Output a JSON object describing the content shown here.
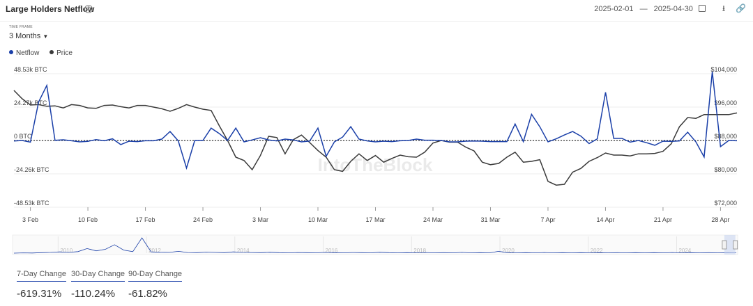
{
  "header": {
    "title": "Large Holders Netflow",
    "date_start": "2025-02-01",
    "date_sep": "—",
    "date_end": "2025-04-30"
  },
  "controls": {
    "timeframe_label": "TIME FRAME",
    "timeframe_value": "3 Months"
  },
  "icons": [
    "help-icon",
    "calendar-icon",
    "download-icon",
    "link-icon",
    "chevron-down-icon"
  ],
  "watermark": "IntoTheBlock",
  "colors": {
    "netflow": "#1a3fa8",
    "price": "#3a3a3a"
  },
  "chart_data": {
    "type": "line",
    "x": [
      "2025-02-01",
      "2025-02-02",
      "2025-02-03",
      "2025-02-04",
      "2025-02-05",
      "2025-02-06",
      "2025-02-07",
      "2025-02-08",
      "2025-02-09",
      "2025-02-10",
      "2025-02-11",
      "2025-02-12",
      "2025-02-13",
      "2025-02-14",
      "2025-02-15",
      "2025-02-16",
      "2025-02-17",
      "2025-02-18",
      "2025-02-19",
      "2025-02-20",
      "2025-02-21",
      "2025-02-22",
      "2025-02-23",
      "2025-02-24",
      "2025-02-25",
      "2025-02-26",
      "2025-02-27",
      "2025-02-28",
      "2025-03-01",
      "2025-03-02",
      "2025-03-03",
      "2025-03-04",
      "2025-03-05",
      "2025-03-06",
      "2025-03-07",
      "2025-03-08",
      "2025-03-09",
      "2025-03-10",
      "2025-03-11",
      "2025-03-12",
      "2025-03-13",
      "2025-03-14",
      "2025-03-15",
      "2025-03-16",
      "2025-03-17",
      "2025-03-18",
      "2025-03-19",
      "2025-03-20",
      "2025-03-21",
      "2025-03-22",
      "2025-03-23",
      "2025-03-24",
      "2025-03-25",
      "2025-03-26",
      "2025-03-27",
      "2025-03-28",
      "2025-03-29",
      "2025-03-30",
      "2025-03-31",
      "2025-04-01",
      "2025-04-02",
      "2025-04-03",
      "2025-04-04",
      "2025-04-05",
      "2025-04-06",
      "2025-04-07",
      "2025-04-08",
      "2025-04-09",
      "2025-04-10",
      "2025-04-11",
      "2025-04-12",
      "2025-04-13",
      "2025-04-14",
      "2025-04-15",
      "2025-04-16",
      "2025-04-17",
      "2025-04-18",
      "2025-04-19",
      "2025-04-20",
      "2025-04-21",
      "2025-04-22",
      "2025-04-23",
      "2025-04-24",
      "2025-04-25",
      "2025-04-26",
      "2025-04-27",
      "2025-04-28",
      "2025-04-29",
      "2025-04-30"
    ],
    "series": [
      {
        "name": "Netflow",
        "axis": "left",
        "color": "#1a3fa8",
        "values": [
          -400,
          0,
          -1200,
          28000,
          40000,
          100,
          500,
          -200,
          -1000,
          -600,
          600,
          -200,
          1200,
          -3000,
          -500,
          -800,
          -200,
          -200,
          1000,
          6500,
          -300,
          -20000,
          0,
          0,
          9000,
          5000,
          0,
          9000,
          -1000,
          400,
          2000,
          400,
          -300,
          1000,
          400,
          -1000,
          -400,
          9000,
          -11500,
          -1000,
          2500,
          10000,
          1000,
          -300,
          -1000,
          -500,
          -800,
          -200,
          0,
          1000,
          200,
          200,
          0,
          -1000,
          -1000,
          -500,
          -400,
          -500,
          -800,
          -800,
          -800,
          12000,
          -800,
          19000,
          10000,
          -1000,
          1200,
          4000,
          6500,
          3200,
          -2200,
          1200,
          35000,
          1500,
          1500,
          -1200,
          0,
          -1600,
          -3500,
          -500,
          -600,
          -300,
          6000,
          -1000,
          -12000,
          50000,
          -4500,
          0,
          -200
        ],
        "display_note": "BTC"
      },
      {
        "name": "Price",
        "axis": "right",
        "color": "#3a3a3a",
        "values": [
          100000,
          98000,
          96500,
          96600,
          96200,
          96300,
          95800,
          96600,
          96400,
          95800,
          95700,
          96400,
          96500,
          96100,
          95800,
          96400,
          96400,
          96000,
          95600,
          95000,
          95700,
          96600,
          96000,
          95500,
          95200,
          91500,
          88000,
          84000,
          83200,
          81000,
          84400,
          89000,
          88700,
          84800,
          88200,
          89300,
          87500,
          85600,
          84000,
          81000,
          80600,
          83000,
          84800,
          83200,
          84400,
          82800,
          83700,
          84500,
          84100,
          84000,
          85200,
          87400,
          88000,
          87600,
          87600,
          86400,
          85500,
          82800,
          82200,
          82500,
          84000,
          85200,
          82800,
          83000,
          83400,
          78200,
          77300,
          77500,
          80400,
          81300,
          83000,
          83900,
          85000,
          84500,
          84500,
          84300,
          84800,
          84800,
          84900,
          85400,
          87200,
          91300,
          93500,
          93300,
          94200,
          94200,
          94200,
          94200,
          94600
        ]
      }
    ],
    "title": "Large Holders Netflow",
    "ylabel": "",
    "left_axis": {
      "ylim": [
        -48530,
        48530
      ],
      "ticks": [
        "48.53k BTC",
        "24.27k BTC",
        "0 BTC",
        "-24.26k BTC",
        "-48.53k BTC"
      ]
    },
    "right_axis": {
      "ylim": [
        72000,
        104000
      ],
      "ticks": [
        "$104,000",
        "$96,000",
        "$88,000",
        "$80,000",
        "$72,000"
      ]
    },
    "xticks": [
      {
        "label": "3 Feb",
        "date": "2025-02-03"
      },
      {
        "label": "10 Feb",
        "date": "2025-02-10"
      },
      {
        "label": "17 Feb",
        "date": "2025-02-17"
      },
      {
        "label": "24 Feb",
        "date": "2025-02-24"
      },
      {
        "label": "3 Mar",
        "date": "2025-03-03"
      },
      {
        "label": "10 Mar",
        "date": "2025-03-10"
      },
      {
        "label": "17 Mar",
        "date": "2025-03-17"
      },
      {
        "label": "24 Mar",
        "date": "2025-03-24"
      },
      {
        "label": "31 Mar",
        "date": "2025-03-31"
      },
      {
        "label": "7 Apr",
        "date": "2025-04-07"
      },
      {
        "label": "14 Apr",
        "date": "2025-04-14"
      },
      {
        "label": "21 Apr",
        "date": "2025-04-21"
      },
      {
        "label": "28 Apr",
        "date": "2025-04-28"
      }
    ],
    "grid": true,
    "zero_line": "dotted",
    "legend_position": "top-left",
    "navigator": {
      "year_labels": [
        "2010",
        "2012",
        "2014",
        "2016",
        "2018",
        "2020",
        "2022",
        "2024"
      ],
      "year_positions": [
        2010,
        2012,
        2014,
        2016,
        2018,
        2020,
        2022,
        2024
      ],
      "year_range": [
        2009.0,
        2025.35
      ],
      "selected_range": [
        2025.08,
        2025.33
      ],
      "overview_values": [
        0,
        0.02,
        0.01,
        0.03,
        0.05,
        0.08,
        0.05,
        0.1,
        0.3,
        0.15,
        0.25,
        0.55,
        0.2,
        0.1,
        1.0,
        0.08,
        0.06,
        0.05,
        0.12,
        0.04,
        0.03,
        0.07,
        0.05,
        0.03,
        0.08,
        0.05,
        0.04,
        0.03,
        0.06,
        0.03,
        0.02,
        0.04,
        0.03,
        0.02,
        0.05,
        0.03,
        0.02,
        0.04,
        0.03,
        0.02,
        0.06,
        0.03,
        0.02,
        0.03,
        0.02,
        0.04,
        0.02,
        0.03,
        0.02,
        0.05,
        0.02,
        0.03,
        0.02,
        0.12,
        0.03,
        0.02,
        0.03,
        0.02,
        0.04,
        0.02,
        0.03,
        0.02,
        0.03,
        0.02,
        0.03,
        0.02,
        0.03,
        0.02,
        0.03,
        0.02,
        0.03,
        0.02,
        0.04,
        0.02,
        0.03,
        0.02,
        0.03,
        0.02,
        0.03,
        0.02
      ]
    }
  },
  "changes": [
    {
      "label": "7-Day Change",
      "value": "-619.31%"
    },
    {
      "label": "30-Day Change",
      "value": "-110.24%"
    },
    {
      "label": "90-Day Change",
      "value": "-61.82%"
    }
  ]
}
